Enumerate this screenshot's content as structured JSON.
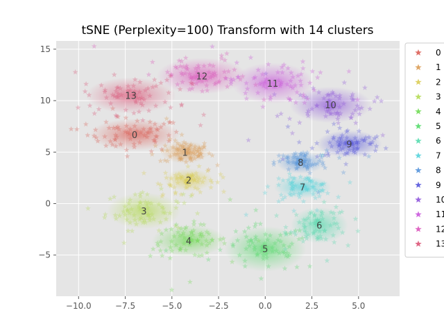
{
  "chart_data": {
    "type": "scatter",
    "title": "tSNE (Perplexity=100) Transform with 14 clusters",
    "xlabel": "",
    "ylabel": "",
    "xlim": [
      -11.2,
      7.2
    ],
    "ylim": [
      -9.0,
      15.8
    ],
    "xticks": [
      -10.0,
      -7.5,
      -5.0,
      -2.5,
      0.0,
      2.5,
      5.0
    ],
    "xtick_labels": [
      "−10.0",
      "−7.5",
      "−5.0",
      "−2.5",
      "0.0",
      "2.5",
      "5.0"
    ],
    "yticks": [
      -5,
      0,
      5,
      10,
      15
    ],
    "ytick_labels": [
      "−5",
      "0",
      "5",
      "10",
      "15"
    ],
    "grid": true,
    "legend_position": "outside-right",
    "marker": "star",
    "clusters": [
      {
        "name": "0",
        "color": "#db5f57",
        "cx": -7.0,
        "cy": 6.7,
        "sx": 1.1,
        "sy": 0.7
      },
      {
        "name": "1",
        "color": "#db9d57",
        "cx": -4.3,
        "cy": 5.0,
        "sx": 0.6,
        "sy": 0.5
      },
      {
        "name": "2",
        "color": "#dbcd57",
        "cx": -4.1,
        "cy": 2.3,
        "sx": 0.6,
        "sy": 0.5
      },
      {
        "name": "3",
        "color": "#b5db57",
        "cx": -6.5,
        "cy": -0.7,
        "sx": 0.9,
        "sy": 0.8
      },
      {
        "name": "4",
        "color": "#72db57",
        "cx": -4.1,
        "cy": -3.6,
        "sx": 0.9,
        "sy": 0.7
      },
      {
        "name": "5",
        "color": "#57db6c",
        "cx": 0.0,
        "cy": -4.4,
        "sx": 1.0,
        "sy": 1.0
      },
      {
        "name": "6",
        "color": "#57dbaf",
        "cx": 2.9,
        "cy": -2.1,
        "sx": 0.7,
        "sy": 0.8
      },
      {
        "name": "7",
        "color": "#57d3db",
        "cx": 2.0,
        "cy": 1.6,
        "sx": 0.7,
        "sy": 0.5
      },
      {
        "name": "8",
        "color": "#5795db",
        "cx": 1.9,
        "cy": 4.0,
        "sx": 0.6,
        "sy": 0.5
      },
      {
        "name": "9",
        "color": "#5757db",
        "cx": 4.5,
        "cy": 5.8,
        "sx": 0.8,
        "sy": 0.6
      },
      {
        "name": "10",
        "color": "#8f57db",
        "cx": 3.5,
        "cy": 9.6,
        "sx": 1.0,
        "sy": 0.8
      },
      {
        "name": "11",
        "color": "#c957db",
        "cx": 0.4,
        "cy": 11.7,
        "sx": 1.0,
        "sy": 0.9
      },
      {
        "name": "12",
        "color": "#db57bc",
        "cx": -3.4,
        "cy": 12.4,
        "sx": 1.1,
        "sy": 0.8
      },
      {
        "name": "13",
        "color": "#db5779",
        "cx": -7.2,
        "cy": 10.5,
        "sx": 1.1,
        "sy": 0.8
      }
    ]
  },
  "colors": {
    "plot_background": "#e5e5e5",
    "grid": "#ffffff",
    "legend_border": "#cccccc"
  }
}
